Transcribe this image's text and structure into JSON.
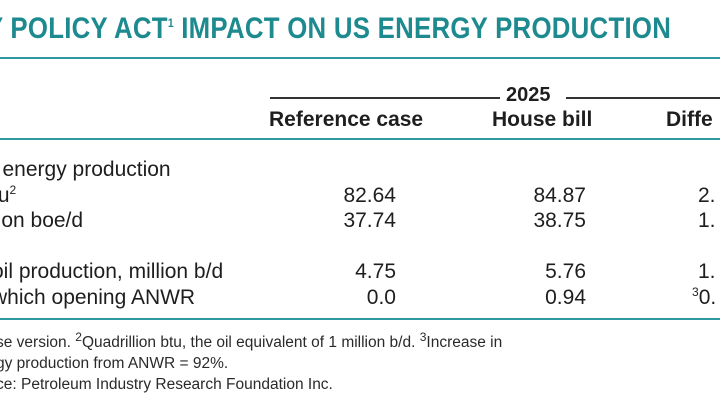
{
  "title": "Y POLICY ACT",
  "title_sup": "1",
  "title_rest": " IMPACT ON US ENERGY PRODUCTION",
  "year": "2025",
  "headers": {
    "reference": "Reference case",
    "house": "House bill",
    "diff": "Diffe"
  },
  "rows": [
    {
      "label": "l energy production",
      "label_sup": "",
      "ref": "",
      "house": "",
      "diff": "",
      "diff_sup": ""
    },
    {
      "label": "tu",
      "label_sup": "2",
      "ref": "82.64",
      "house": "84.87",
      "diff": "2.",
      "diff_sup": ""
    },
    {
      "label": "lion boe/d",
      "label_sup": "",
      "ref": "37.74",
      "house": "38.75",
      "diff": "1.",
      "diff_sup": ""
    },
    {
      "label": "oil production, million b/d",
      "label_sup": "",
      "ref": "4.75",
      "house": "5.76",
      "diff": "1.",
      "diff_sup": ""
    },
    {
      "label": "which opening ANWR",
      "label_sup": "",
      "ref": "0.0",
      "house": "0.94",
      "diff": "0.",
      "diff_sup": "3"
    }
  ],
  "footnotes": {
    "line1_a": "se version. ",
    "line1_sup2": "2",
    "line1_b": "Quadrillion btu, the oil equivalent of 1 million b/d. ",
    "line1_sup3": "3",
    "line1_c": "Increase in",
    "line2": "gy production from ANWR = 92%.",
    "line3": "ce: Petroleum Industry Research Foundation Inc."
  },
  "colors": {
    "title": "#1c8a8f",
    "rule": "#2f9aa0"
  }
}
